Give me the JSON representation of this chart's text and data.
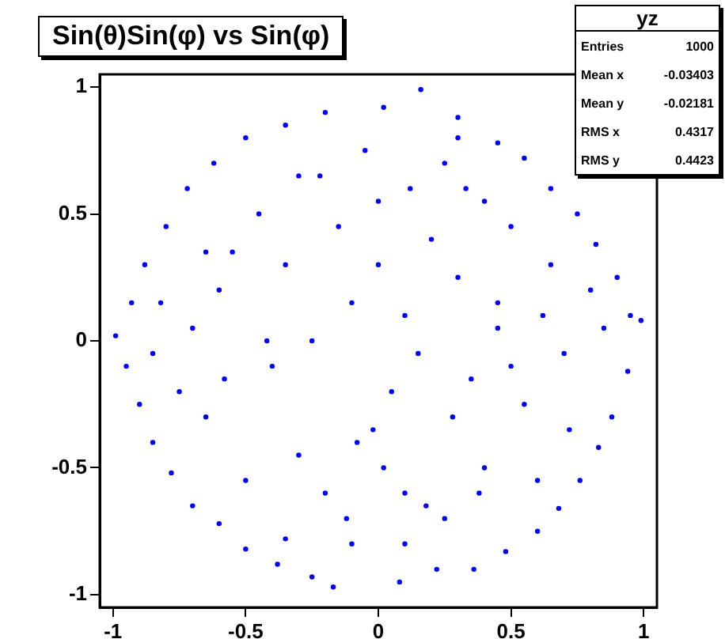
{
  "chart_data": {
    "type": "scatter",
    "title": "Sin(θ)Sin(φ) vs Sin(φ)",
    "annotations": [
      "yz",
      "Entries 1000",
      "Mean x -0.03403",
      "Mean y -0.02181",
      "RMS x 0.4317",
      "RMS y 0.4423"
    ],
    "xlim": [
      -1.05,
      1.05
    ],
    "ylim": [
      -1.05,
      1.05
    ],
    "xticks": [
      -1,
      -0.5,
      0,
      0.5,
      1
    ],
    "yticks": [
      -1,
      -0.5,
      0,
      0.5,
      1
    ],
    "grid": false,
    "legend": false,
    "marker": "circle",
    "series": [
      {
        "color": "#0000ff",
        "x": [
          0.16,
          0.02,
          -0.2,
          -0.35,
          0.3,
          0.45,
          -0.5,
          0.55,
          -0.62,
          0.65,
          -0.72,
          0.75,
          -0.8,
          0.82,
          -0.88,
          0.9,
          -0.93,
          0.95,
          -0.99,
          0.99,
          -0.95,
          0.94,
          -0.9,
          0.88,
          -0.85,
          0.83,
          -0.78,
          0.76,
          -0.7,
          0.68,
          -0.6,
          0.6,
          -0.5,
          0.48,
          -0.38,
          0.36,
          -0.25,
          0.22,
          -0.17,
          0.08,
          0.25,
          -0.05,
          -0.3,
          0.12,
          0.4,
          -0.45,
          0.5,
          -0.55,
          0.2,
          -0.15,
          0.3,
          -0.35,
          0.0,
          0.1,
          -0.1,
          0.45,
          -0.6,
          0.62,
          -0.7,
          0.7,
          0.15,
          -0.25,
          0.35,
          -0.4,
          0.05,
          -0.02,
          0.28,
          -0.65,
          0.55,
          -0.3,
          0.4,
          -0.5,
          0.1,
          -0.12,
          0.6,
          -0.75,
          0.72,
          -0.82,
          0.8,
          -0.2,
          0.25,
          0.0,
          -0.42,
          0.45,
          0.33,
          -0.58,
          -0.08,
          0.18,
          0.5,
          -0.65,
          0.65,
          -0.35,
          0.38,
          -0.85,
          0.85,
          0.1,
          -0.1,
          0.3,
          -0.22,
          0.02
        ],
        "values": [
          0.99,
          0.92,
          0.9,
          0.85,
          0.88,
          0.78,
          0.8,
          0.72,
          0.7,
          0.6,
          0.6,
          0.5,
          0.45,
          0.38,
          0.3,
          0.25,
          0.15,
          0.1,
          0.02,
          0.08,
          -0.1,
          -0.12,
          -0.25,
          -0.3,
          -0.4,
          -0.42,
          -0.52,
          -0.55,
          -0.65,
          -0.66,
          -0.72,
          -0.75,
          -0.82,
          -0.83,
          -0.88,
          -0.9,
          -0.93,
          -0.9,
          -0.97,
          -0.95,
          0.7,
          0.75,
          0.65,
          0.6,
          0.55,
          0.5,
          0.45,
          0.35,
          0.4,
          0.45,
          0.25,
          0.3,
          0.3,
          0.1,
          0.15,
          0.15,
          0.2,
          0.1,
          0.05,
          -0.05,
          -0.05,
          0.0,
          -0.15,
          -0.1,
          -0.2,
          -0.35,
          -0.3,
          -0.3,
          -0.25,
          -0.45,
          -0.5,
          -0.55,
          -0.6,
          -0.7,
          -0.55,
          -0.2,
          -0.35,
          0.15,
          0.2,
          -0.6,
          -0.7,
          0.55,
          0.0,
          0.05,
          0.6,
          -0.15,
          -0.4,
          -0.65,
          -0.1,
          0.35,
          0.3,
          -0.78,
          -0.6,
          -0.05,
          0.05,
          -0.8,
          -0.8,
          0.8,
          0.65,
          -0.5
        ]
      }
    ]
  }
}
